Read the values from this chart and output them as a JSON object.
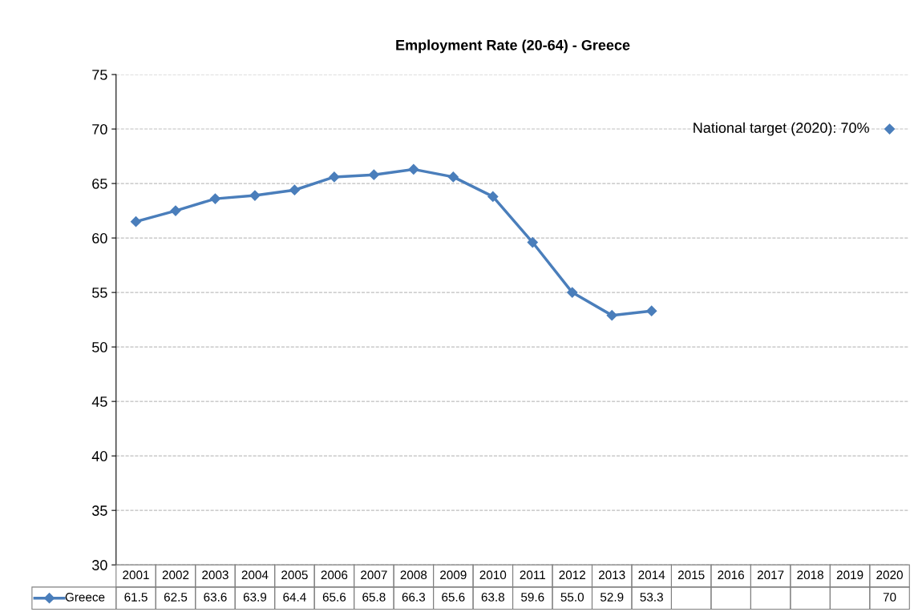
{
  "chart_data": {
    "type": "line",
    "title": "Employment Rate (20-64) - Greece",
    "categories": [
      "2001",
      "2002",
      "2003",
      "2004",
      "2005",
      "2006",
      "2007",
      "2008",
      "2009",
      "2010",
      "2011",
      "2012",
      "2013",
      "2014",
      "2015",
      "2016",
      "2017",
      "2018",
      "2019",
      "2020"
    ],
    "series": [
      {
        "name": "Greece",
        "color": "#4a7ebb",
        "values": [
          61.5,
          62.5,
          63.6,
          63.9,
          64.4,
          65.6,
          65.8,
          66.3,
          65.6,
          63.8,
          59.6,
          55.0,
          52.9,
          53.3,
          null,
          null,
          null,
          null,
          null,
          70
        ],
        "value_labels": [
          "61.5",
          "62.5",
          "63.6",
          "63.9",
          "64.4",
          "65.6",
          "65.8",
          "66.3",
          "65.6",
          "63.8",
          "59.6",
          "55.0",
          "52.9",
          "53.3",
          null,
          null,
          null,
          null,
          null,
          "70"
        ]
      }
    ],
    "ylim": [
      30,
      75
    ],
    "yticks": [
      30,
      35,
      40,
      45,
      50,
      55,
      60,
      65,
      70,
      75
    ],
    "grid": "y",
    "marker": "diamond",
    "line_style": "solid",
    "legend": "bottom",
    "annotations": [
      {
        "text": "National target (2020): 70%",
        "x": "2020",
        "y": 70
      }
    ]
  }
}
